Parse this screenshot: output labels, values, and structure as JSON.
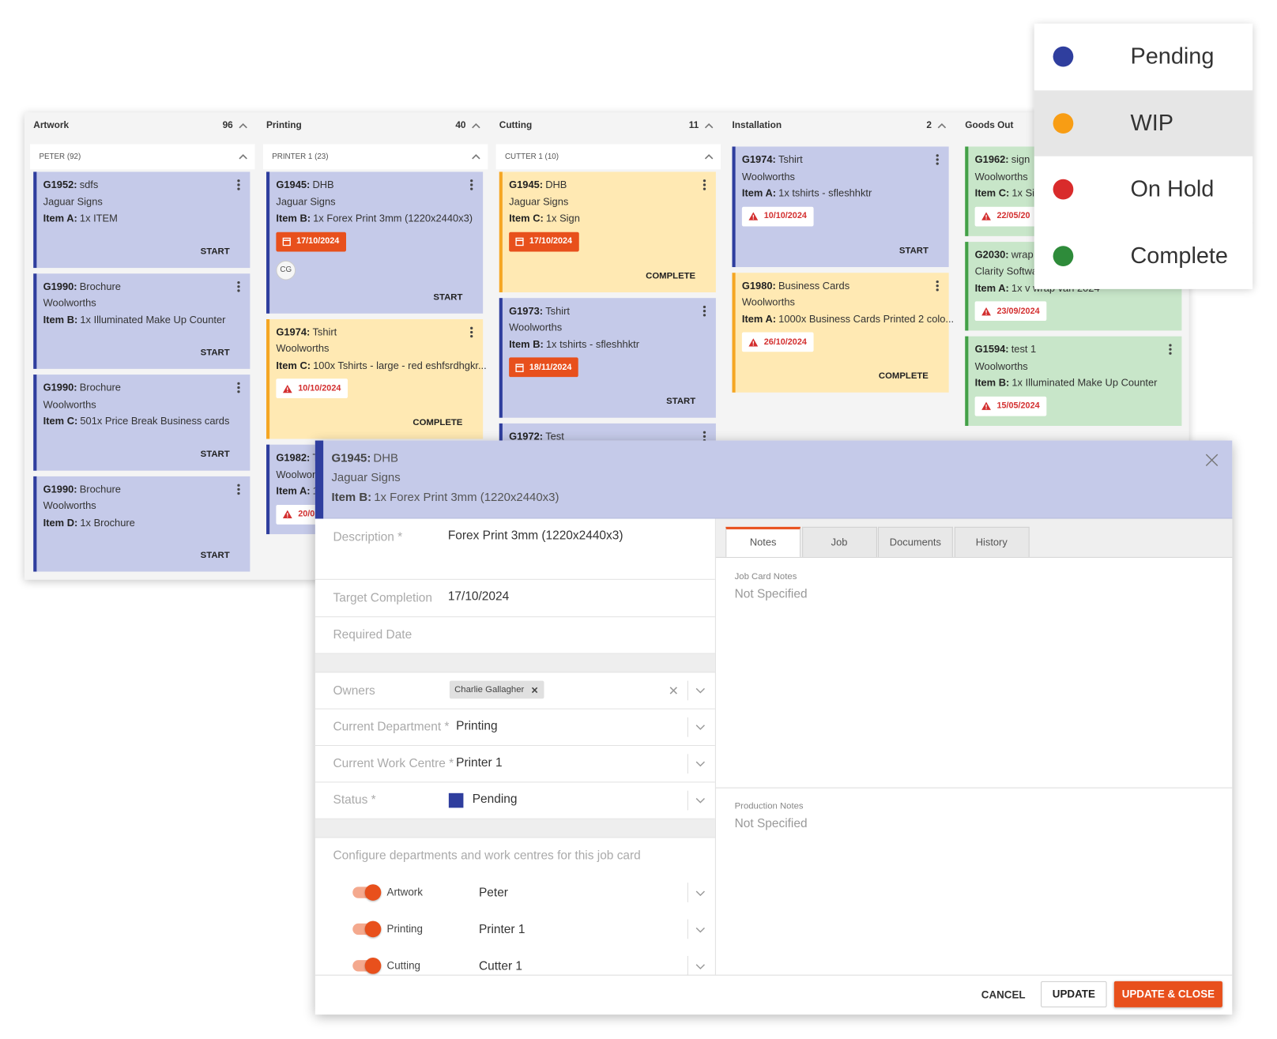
{
  "legend": {
    "items": [
      {
        "label": "Pending",
        "color": "#2f3e9e"
      },
      {
        "label": "WIP",
        "color": "#f89d14",
        "selected": true
      },
      {
        "label": "On Hold",
        "color": "#d92b2b"
      },
      {
        "label": "Complete",
        "color": "#2e8b3a"
      }
    ]
  },
  "board": {
    "columns": [
      {
        "title": "Artwork",
        "count": 96,
        "group": "PETER (92)",
        "cards": [
          {
            "id": "G1952:",
            "title": "sdfs",
            "customer": "Jaguar Signs",
            "item_label": "Item A:",
            "item_text": "1x ITEM",
            "action": "START",
            "status": "Pending"
          },
          {
            "id": "G1990:",
            "title": "Brochure",
            "customer": "Woolworths",
            "item_label": "Item B:",
            "item_text": "1x Illuminated Make Up Counter",
            "action": "START",
            "status": "Pending"
          },
          {
            "id": "G1990:",
            "title": "Brochure",
            "customer": "Woolworths",
            "item_label": "Item C:",
            "item_text": "501x Price Break Business cards",
            "action": "START",
            "status": "Pending"
          },
          {
            "id": "G1990:",
            "title": "Brochure",
            "customer": "Woolworths",
            "item_label": "Item D:",
            "item_text": "1x Brochure",
            "action": "START",
            "status": "Pending"
          }
        ]
      },
      {
        "title": "Printing",
        "count": 40,
        "group": "PRINTER 1 (23)",
        "cards": [
          {
            "id": "G1945:",
            "title": "DHB",
            "customer": "Jaguar Signs",
            "item_label": "Item B:",
            "item_text": "1x Forex Print 3mm (1220x2440x3)",
            "date": "17/10/2024",
            "date_style": "calendar",
            "avatar": "CG",
            "action": "START",
            "status": "Pending"
          },
          {
            "id": "G1974:",
            "title": "Tshirt",
            "customer": "Woolworths",
            "item_label": "Item C:",
            "item_text": "100x Tshirts - large - red eshfsrdhgkr...",
            "date": "10/10/2024",
            "date_style": "warning",
            "action": "COMPLETE",
            "status": "WIP"
          },
          {
            "id": "G1982:",
            "title": "T",
            "customer": "Woolwor",
            "item_label": "Item A:",
            "item_text": "1",
            "date": "20/0",
            "date_style": "warning",
            "status": "Pending"
          }
        ]
      },
      {
        "title": "Cutting",
        "count": 11,
        "group": "CUTTER 1 (10)",
        "cards": [
          {
            "id": "G1945:",
            "title": "DHB",
            "customer": "Jaguar Signs",
            "item_label": "Item C:",
            "item_text": "1x Sign",
            "date": "17/10/2024",
            "date_style": "calendar",
            "action": "COMPLETE",
            "status": "WIP"
          },
          {
            "id": "G1973:",
            "title": "Tshirt",
            "customer": "Woolworths",
            "item_label": "Item B:",
            "item_text": "1x tshirts - sfleshhktr",
            "date": "18/11/2024",
            "date_style": "calendar",
            "action": "START",
            "status": "Pending"
          },
          {
            "id": "G1972:",
            "title": "Test",
            "status": "Pending"
          }
        ]
      },
      {
        "title": "Installation",
        "count": 2,
        "cards": [
          {
            "id": "G1974:",
            "title": "Tshirt",
            "customer": "Woolworths",
            "item_label": "Item A:",
            "item_text": "1x tshirts - sfleshhktr",
            "date": "10/10/2024",
            "date_style": "warning",
            "action": "START",
            "status": "Pending"
          },
          {
            "id": "G1980:",
            "title": "Business Cards",
            "customer": "Woolworths",
            "item_label": "Item A:",
            "item_text": "1000x Business Cards Printed 2 colo...",
            "date": "26/10/2024",
            "date_style": "warning",
            "action": "COMPLETE",
            "status": "WIP"
          }
        ]
      },
      {
        "title": "Goods Out",
        "cards": [
          {
            "id": "G1962:",
            "title": "sign",
            "customer": "Woolworths",
            "item_label": "Item C:",
            "item_text": "1x Sig",
            "date": "22/05/20",
            "date_style": "warning",
            "status": "Complete"
          },
          {
            "id": "G2030:",
            "title": "wrap",
            "customer": "Clarity Softwa",
            "item_label": "Item A:",
            "item_text": "1x v wrap van 2024",
            "date": "23/09/2024",
            "date_style": "warning",
            "status": "Complete"
          },
          {
            "id": "G1594:",
            "title": "test 1",
            "customer": "Woolworths",
            "item_label": "Item B:",
            "item_text": "1x Illuminated Make Up Counter",
            "date": "15/05/2024",
            "date_style": "warning",
            "status": "Complete"
          }
        ]
      }
    ]
  },
  "modal": {
    "header": {
      "id": "G1945:",
      "title": "DHB",
      "customer": "Jaguar Signs",
      "item_label": "Item B:",
      "item_text": "1x Forex Print 3mm (1220x2440x3)"
    },
    "fields": [
      {
        "label": "Description *",
        "value": "Forex Print 3mm (1220x2440x3)"
      },
      {
        "label": "Target Completion",
        "value": "17/10/2024"
      },
      {
        "label": "Required Date"
      }
    ],
    "owners": {
      "label": "Owners",
      "chips": [
        "Charlie Gallagher"
      ]
    },
    "selects": [
      {
        "label": "Current Department *",
        "value": "Printing"
      },
      {
        "label": "Current Work Centre *",
        "value": "Printer 1"
      },
      {
        "label": "Status *",
        "value": "Pending"
      }
    ],
    "config": {
      "text": "Configure departments and work centres for this job card",
      "rows": [
        {
          "department": "Artwork",
          "work_centre": "Peter",
          "enabled": true
        },
        {
          "department": "Printing",
          "work_centre": "Printer 1",
          "enabled": true
        },
        {
          "department": "Cutting",
          "work_centre": "Cutter 1",
          "enabled": true
        }
      ]
    },
    "tabs": {
      "items": [
        "Notes",
        "Job",
        "Documents",
        "History"
      ],
      "active": 0
    },
    "notes": [
      {
        "label": "Job Card Notes",
        "value": "Not Specified"
      },
      {
        "label": "Production Notes",
        "value": "Not Specified"
      }
    ],
    "buttons": [
      "CANCEL",
      "UPDATE",
      "UPDATE & CLOSE"
    ]
  }
}
